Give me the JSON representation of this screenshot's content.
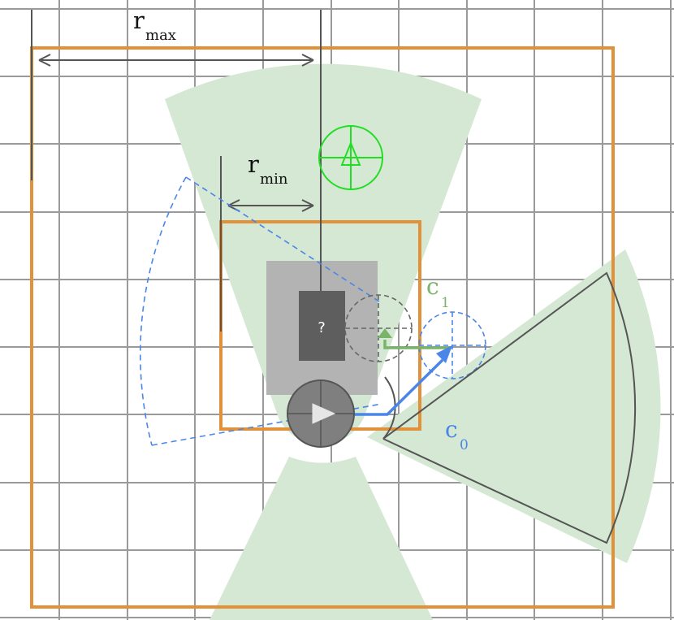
{
  "labels": {
    "rmax_main": "r",
    "rmax_sub": "max",
    "rmin_main": "r",
    "rmin_sub": "min",
    "c1_main": "c",
    "c1_sub": "1",
    "c0_main": "c",
    "c0_sub": "0",
    "unknown": "?"
  },
  "colors": {
    "grid": "#9a9a9a",
    "boundary": "#e0913a",
    "sector_fill": "#d5e8d4",
    "dimension": "#555555",
    "blue": "#4a86e8",
    "green": "#7ab36a",
    "bright_green": "#22dd22",
    "robot": "#7f7f7f",
    "obstacle_light": "#b3b3b3",
    "obstacle_dark": "#5e5e5e"
  },
  "icons": {
    "robot": "play-triangle-in-circle",
    "target": "crosshair-triangle-marker",
    "unknown_object": "question-box"
  }
}
